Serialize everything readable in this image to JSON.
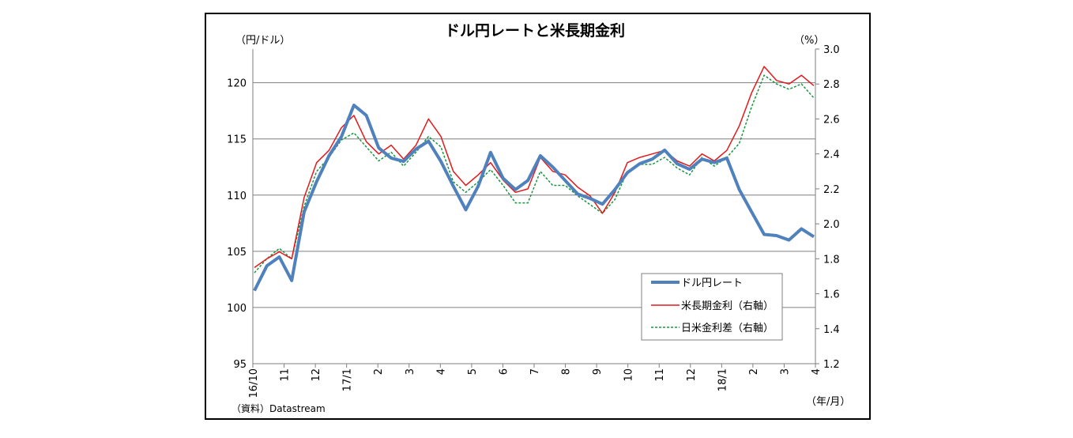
{
  "chart_data": {
    "type": "line",
    "title": "ドル円レートと米長期金利",
    "ylabel_left": "（円/ドル）",
    "ylabel_right": "（%）",
    "xlabel": "（年/月）",
    "source": "（資料）Datastream",
    "ylim_left": [
      95,
      123
    ],
    "ylim_right": [
      1.2,
      3.0
    ],
    "yticks_left": [
      95,
      100,
      105,
      110,
      115,
      120
    ],
    "yticks_right": [
      "1.2",
      "1.4",
      "1.6",
      "1.8",
      "2.0",
      "2.2",
      "2.4",
      "2.6",
      "2.8",
      "3.0"
    ],
    "grid_left": [
      100,
      105,
      110,
      115,
      120
    ],
    "x_tick_labels": [
      "16/10",
      "11",
      "12",
      "17/1",
      "2",
      "3",
      "4",
      "5",
      "6",
      "7",
      "8",
      "9",
      "10",
      "11",
      "12",
      "18/1",
      "2",
      "3",
      "4"
    ],
    "legend_position": "bottom-right",
    "x": [
      "2016-10",
      "2016-10",
      "2016-11",
      "2016-11",
      "2016-11",
      "2016-11",
      "2016-12",
      "2016-12",
      "2016-12",
      "2017-01",
      "2017-01",
      "2017-02",
      "2017-02",
      "2017-03",
      "2017-03",
      "2017-03",
      "2017-04",
      "2017-04",
      "2017-04",
      "2017-05",
      "2017-05",
      "2017-06",
      "2017-06",
      "2017-07",
      "2017-07",
      "2017-07",
      "2017-08",
      "2017-08",
      "2017-09",
      "2017-09",
      "2017-09",
      "2017-10",
      "2017-10",
      "2017-11",
      "2017-11",
      "2017-11",
      "2017-12",
      "2017-12",
      "2018-01",
      "2018-01",
      "2018-02",
      "2018-02",
      "2018-03",
      "2018-03",
      "2018-04",
      "2018-04"
    ],
    "series": [
      {
        "name": "ドル円レート",
        "axis": "left",
        "color": "#4f81bd",
        "style": "solid-thick",
        "values": [
          101.5,
          103.7,
          104.5,
          102.4,
          108.5,
          111.2,
          113.5,
          115.2,
          118.0,
          117.1,
          114.2,
          113.3,
          113.0,
          114.1,
          114.8,
          113.0,
          110.8,
          108.7,
          110.8,
          113.8,
          111.5,
          110.5,
          111.3,
          113.5,
          112.5,
          111.3,
          110.1,
          109.7,
          109.2,
          110.5,
          112.0,
          112.8,
          113.2,
          114.0,
          112.8,
          112.3,
          113.2,
          112.9,
          113.3,
          110.5,
          108.5,
          106.5,
          106.4,
          106.0,
          107.0,
          106.3
        ]
      },
      {
        "name": "米長期金利（右軸）",
        "axis": "right",
        "color": "#e31a1c",
        "style": "solid",
        "values": [
          1.75,
          1.8,
          1.84,
          1.8,
          2.15,
          2.35,
          2.42,
          2.55,
          2.62,
          2.47,
          2.4,
          2.45,
          2.37,
          2.45,
          2.6,
          2.5,
          2.3,
          2.22,
          2.28,
          2.35,
          2.25,
          2.18,
          2.2,
          2.38,
          2.3,
          2.28,
          2.21,
          2.16,
          2.06,
          2.18,
          2.35,
          2.38,
          2.4,
          2.42,
          2.36,
          2.33,
          2.4,
          2.36,
          2.42,
          2.56,
          2.75,
          2.9,
          2.82,
          2.8,
          2.85,
          2.79
        ]
      },
      {
        "name": "日米金利差（右軸）",
        "axis": "right",
        "color": "#1a9641",
        "style": "dashed",
        "values": [
          1.72,
          1.8,
          1.86,
          1.8,
          2.1,
          2.3,
          2.38,
          2.48,
          2.52,
          2.44,
          2.36,
          2.41,
          2.33,
          2.41,
          2.5,
          2.44,
          2.24,
          2.18,
          2.24,
          2.31,
          2.22,
          2.12,
          2.12,
          2.3,
          2.22,
          2.22,
          2.16,
          2.11,
          2.06,
          2.14,
          2.3,
          2.34,
          2.34,
          2.38,
          2.32,
          2.28,
          2.38,
          2.33,
          2.38,
          2.46,
          2.67,
          2.85,
          2.8,
          2.77,
          2.8,
          2.72
        ]
      }
    ]
  }
}
